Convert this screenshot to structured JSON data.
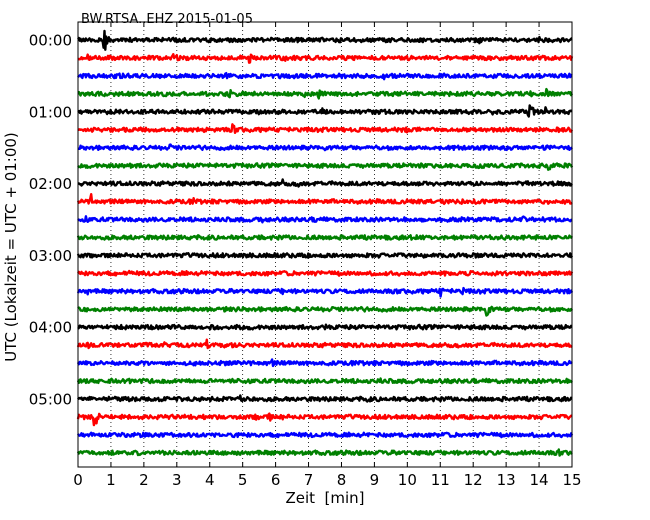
{
  "chart_data": {
    "type": "line",
    "title": "BW.RTSA..EHZ 2015-01-05",
    "xlabel": "Zeit  [min]",
    "ylabel": "UTC (Lokalzeit = UTC + 01:00)",
    "xlim": [
      0,
      15
    ],
    "x_ticks": [
      "0",
      "1",
      "2",
      "3",
      "4",
      "5",
      "6",
      "7",
      "8",
      "9",
      "10",
      "11",
      "12",
      "13",
      "14",
      "15"
    ],
    "y_ticks": [
      "00:00",
      "01:00",
      "02:00",
      "03:00",
      "04:00",
      "05:00"
    ],
    "grid": "vertical dotted",
    "trace_interval_min": 15,
    "trace_colors": [
      "#000000",
      "#ff0000",
      "#0000ff",
      "#008000"
    ],
    "series": [
      {
        "name": "00:00",
        "color": "#000000",
        "events": [
          {
            "t": 0.8,
            "amp": 1.0
          },
          {
            "t": 4.0,
            "amp": 0.55
          },
          {
            "t": 9.5,
            "amp": 0.3
          },
          {
            "t": 12.2,
            "amp": 0.35
          },
          {
            "t": 14.0,
            "amp": 0.3
          }
        ]
      },
      {
        "name": "00:15",
        "color": "#ff0000",
        "events": [
          {
            "t": 0.3,
            "amp": 0.3
          },
          {
            "t": 2.9,
            "amp": 0.45
          },
          {
            "t": 3.0,
            "amp": 0.35
          },
          {
            "t": 5.2,
            "amp": 0.6
          },
          {
            "t": 6.3,
            "amp": 0.3
          },
          {
            "t": 10.0,
            "amp": 0.3
          }
        ]
      },
      {
        "name": "00:30",
        "color": "#0000ff",
        "events": [
          {
            "t": 1.3,
            "amp": 0.4
          },
          {
            "t": 4.5,
            "amp": 0.3
          },
          {
            "t": 9.3,
            "amp": 0.3
          },
          {
            "t": 13.2,
            "amp": 0.3
          }
        ]
      },
      {
        "name": "00:45",
        "color": "#008000",
        "events": [
          {
            "t": 2.6,
            "amp": 0.3
          },
          {
            "t": 4.6,
            "amp": 0.45
          },
          {
            "t": 6.9,
            "amp": 0.3
          },
          {
            "t": 7.3,
            "amp": 0.45
          },
          {
            "t": 13.6,
            "amp": 1.0
          },
          {
            "t": 14.2,
            "amp": 0.5
          }
        ]
      },
      {
        "name": "01:00",
        "color": "#000000",
        "events": [
          {
            "t": 5.5,
            "amp": 0.3
          },
          {
            "t": 7.4,
            "amp": 0.35
          },
          {
            "t": 12.6,
            "amp": 0.55
          },
          {
            "t": 13.7,
            "amp": 1.0
          },
          {
            "t": 14.2,
            "amp": 0.5
          }
        ]
      },
      {
        "name": "01:15",
        "color": "#ff0000",
        "events": [
          {
            "t": 2.3,
            "amp": 0.25
          },
          {
            "t": 4.7,
            "amp": 0.55
          },
          {
            "t": 10.0,
            "amp": 0.25
          },
          {
            "t": 13.9,
            "amp": 0.25
          }
        ]
      },
      {
        "name": "01:30",
        "color": "#0000ff",
        "events": [
          {
            "t": 2.8,
            "amp": 0.3
          },
          {
            "t": 7.5,
            "amp": 0.3
          },
          {
            "t": 11.7,
            "amp": 0.3
          }
        ]
      },
      {
        "name": "01:45",
        "color": "#008000",
        "events": [
          {
            "t": 1.6,
            "amp": 0.3
          },
          {
            "t": 2.4,
            "amp": 0.5
          },
          {
            "t": 10.4,
            "amp": 0.3
          },
          {
            "t": 14.3,
            "amp": 0.6
          }
        ]
      },
      {
        "name": "02:00",
        "color": "#000000",
        "events": [
          {
            "t": 1.1,
            "amp": 0.3
          },
          {
            "t": 6.2,
            "amp": 0.4
          },
          {
            "t": 6.7,
            "amp": 0.45
          },
          {
            "t": 9.9,
            "amp": 0.25
          }
        ]
      },
      {
        "name": "02:15",
        "color": "#ff0000",
        "events": [
          {
            "t": 0.4,
            "amp": 0.6
          },
          {
            "t": 3.5,
            "amp": 0.3
          },
          {
            "t": 7.5,
            "amp": 0.3
          },
          {
            "t": 14.3,
            "amp": 0.35
          }
        ]
      },
      {
        "name": "02:30",
        "color": "#0000ff",
        "events": [
          {
            "t": 0.2,
            "amp": 0.55
          },
          {
            "t": 5.6,
            "amp": 0.35
          },
          {
            "t": 7.2,
            "amp": 0.35
          },
          {
            "t": 13.5,
            "amp": 0.35
          }
        ]
      },
      {
        "name": "02:45",
        "color": "#008000",
        "events": [
          {
            "t": 1.6,
            "amp": 0.3
          },
          {
            "t": 10.8,
            "amp": 0.25
          }
        ]
      },
      {
        "name": "03:00",
        "color": "#000000",
        "events": [
          {
            "t": 5.0,
            "amp": 0.3
          },
          {
            "t": 7.4,
            "amp": 0.3
          }
        ]
      },
      {
        "name": "03:15",
        "color": "#ff0000",
        "events": [
          {
            "t": 1.5,
            "amp": 0.35
          },
          {
            "t": 4.1,
            "amp": 0.3
          }
        ]
      },
      {
        "name": "03:30",
        "color": "#0000ff",
        "events": [
          {
            "t": 0.3,
            "amp": 0.35
          },
          {
            "t": 3.7,
            "amp": 0.3
          },
          {
            "t": 6.2,
            "amp": 0.3
          },
          {
            "t": 11.0,
            "amp": 0.5
          },
          {
            "t": 11.7,
            "amp": 0.35
          }
        ]
      },
      {
        "name": "03:45",
        "color": "#008000",
        "events": [
          {
            "t": 12.4,
            "amp": 0.9
          }
        ]
      },
      {
        "name": "04:00",
        "color": "#000000",
        "events": [
          {
            "t": 0.3,
            "amp": 0.3
          },
          {
            "t": 7.5,
            "amp": 0.3
          },
          {
            "t": 12.0,
            "amp": 0.3
          }
        ]
      },
      {
        "name": "04:15",
        "color": "#ff0000",
        "events": [
          {
            "t": 0.3,
            "amp": 0.4
          },
          {
            "t": 2.6,
            "amp": 0.3
          },
          {
            "t": 3.9,
            "amp": 0.5
          },
          {
            "t": 11.6,
            "amp": 0.3
          }
        ]
      },
      {
        "name": "04:30",
        "color": "#0000ff",
        "events": [
          {
            "t": 5.9,
            "amp": 0.3
          },
          {
            "t": 8.9,
            "amp": 0.3
          }
        ]
      },
      {
        "name": "04:45",
        "color": "#008000",
        "events": [
          {
            "t": 3.2,
            "amp": 0.25
          },
          {
            "t": 9.2,
            "amp": 0.25
          }
        ]
      },
      {
        "name": "05:00",
        "color": "#000000",
        "events": [
          {
            "t": 4.9,
            "amp": 0.45
          },
          {
            "t": 5.3,
            "amp": 0.4
          },
          {
            "t": 8.8,
            "amp": 0.4
          },
          {
            "t": 12.3,
            "amp": 0.3
          }
        ]
      },
      {
        "name": "05:15",
        "color": "#ff0000",
        "events": [
          {
            "t": 0.5,
            "amp": 1.0
          },
          {
            "t": 5.4,
            "amp": 0.5
          },
          {
            "t": 5.8,
            "amp": 0.45
          },
          {
            "t": 6.2,
            "amp": 0.3
          }
        ]
      },
      {
        "name": "05:30",
        "color": "#0000ff",
        "events": [
          {
            "t": 4.7,
            "amp": 0.3
          },
          {
            "t": 11.0,
            "amp": 0.35
          }
        ]
      },
      {
        "name": "05:45",
        "color": "#008000",
        "events": [
          {
            "t": 14.6,
            "amp": 0.3
          }
        ]
      }
    ]
  }
}
